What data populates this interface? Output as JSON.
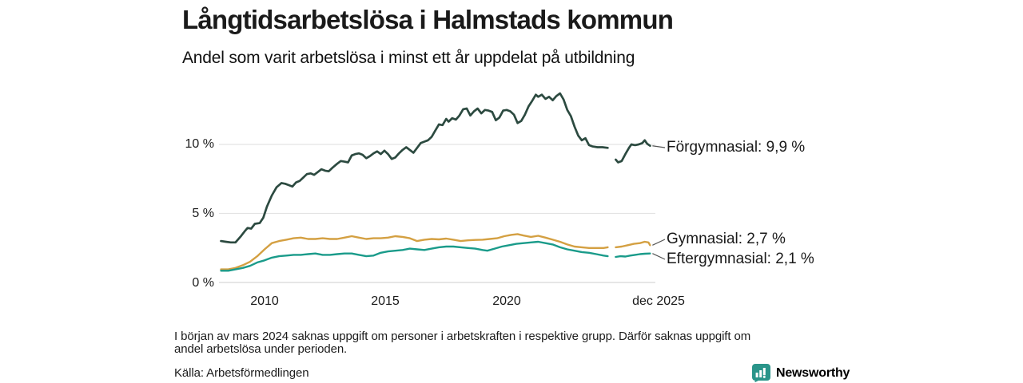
{
  "chart_data": {
    "type": "line",
    "title": "Långtidsarbetslösa i Halmstads kommun",
    "subtitle": "Andel som varit arbetslösa i minst ett år uppdelat på utbildning",
    "unit": "%",
    "grid": true,
    "legend_position": "right-end-of-line",
    "x_axis": {
      "range": [
        2008.2,
        2025.92
      ],
      "ticks": [
        {
          "label": "2010",
          "year": 2010
        },
        {
          "label": "2015",
          "year": 2015
        },
        {
          "label": "2020",
          "year": 2020
        },
        {
          "label": "dec 2025",
          "year": 2025.92
        }
      ]
    },
    "y_axis": {
      "range": [
        0,
        14.5
      ],
      "ticks": [
        {
          "label": "0 %",
          "value": 0
        },
        {
          "label": "5 %",
          "value": 5
        },
        {
          "label": "10 %",
          "value": 10
        }
      ]
    },
    "data_gap": {
      "from": 2024.17,
      "to": 2024.5,
      "period": "mars 2024"
    },
    "series": [
      {
        "name": "Förgymnasial",
        "label": "Förgymnasial: 9,9 %",
        "last_value": "9,9 %",
        "color": "#2c4a40",
        "segments": [
          [
            [
              2008.2,
              3.0
            ],
            [
              2008.4,
              2.95
            ],
            [
              2008.6,
              2.9
            ],
            [
              2008.8,
              2.9
            ],
            [
              2009.0,
              3.3
            ],
            [
              2009.2,
              3.75
            ],
            [
              2009.3,
              3.95
            ],
            [
              2009.45,
              3.9
            ],
            [
              2009.6,
              4.25
            ],
            [
              2009.8,
              4.3
            ],
            [
              2009.95,
              4.7
            ],
            [
              2010.1,
              5.5
            ],
            [
              2010.3,
              6.3
            ],
            [
              2010.5,
              6.9
            ],
            [
              2010.7,
              7.2
            ],
            [
              2010.85,
              7.15
            ],
            [
              2011.0,
              7.05
            ],
            [
              2011.15,
              6.95
            ],
            [
              2011.3,
              7.25
            ],
            [
              2011.45,
              7.35
            ],
            [
              2011.6,
              7.6
            ],
            [
              2011.75,
              7.85
            ],
            [
              2011.9,
              7.9
            ],
            [
              2012.05,
              7.8
            ],
            [
              2012.2,
              8.0
            ],
            [
              2012.35,
              8.2
            ],
            [
              2012.5,
              8.1
            ],
            [
              2012.65,
              8.05
            ],
            [
              2012.8,
              8.3
            ],
            [
              2013.0,
              8.6
            ],
            [
              2013.15,
              8.8
            ],
            [
              2013.3,
              8.75
            ],
            [
              2013.45,
              8.7
            ],
            [
              2013.6,
              9.2
            ],
            [
              2013.75,
              9.3
            ],
            [
              2013.9,
              9.35
            ],
            [
              2014.05,
              9.25
            ],
            [
              2014.2,
              9.0
            ],
            [
              2014.35,
              9.15
            ],
            [
              2014.5,
              9.35
            ],
            [
              2014.65,
              9.5
            ],
            [
              2014.8,
              9.3
            ],
            [
              2014.95,
              9.55
            ],
            [
              2015.1,
              9.3
            ],
            [
              2015.25,
              8.95
            ],
            [
              2015.4,
              9.05
            ],
            [
              2015.55,
              9.35
            ],
            [
              2015.7,
              9.6
            ],
            [
              2015.85,
              9.8
            ],
            [
              2016.0,
              9.6
            ],
            [
              2016.15,
              9.4
            ],
            [
              2016.3,
              9.75
            ],
            [
              2016.45,
              10.1
            ],
            [
              2016.6,
              10.2
            ],
            [
              2016.75,
              10.3
            ],
            [
              2016.9,
              10.55
            ],
            [
              2017.05,
              11.0
            ],
            [
              2017.2,
              11.45
            ],
            [
              2017.35,
              11.4
            ],
            [
              2017.5,
              11.85
            ],
            [
              2017.6,
              11.65
            ],
            [
              2017.75,
              11.9
            ],
            [
              2017.9,
              11.8
            ],
            [
              2018.05,
              12.1
            ],
            [
              2018.2,
              12.55
            ],
            [
              2018.35,
              12.6
            ],
            [
              2018.5,
              12.1
            ],
            [
              2018.65,
              12.4
            ],
            [
              2018.8,
              12.6
            ],
            [
              2018.95,
              12.25
            ],
            [
              2019.1,
              12.5
            ],
            [
              2019.25,
              12.45
            ],
            [
              2019.4,
              12.35
            ],
            [
              2019.55,
              11.75
            ],
            [
              2019.7,
              11.95
            ],
            [
              2019.85,
              12.45
            ],
            [
              2020.0,
              12.5
            ],
            [
              2020.15,
              12.4
            ],
            [
              2020.3,
              12.15
            ],
            [
              2020.45,
              11.55
            ],
            [
              2020.6,
              11.7
            ],
            [
              2020.75,
              12.15
            ],
            [
              2020.9,
              12.75
            ],
            [
              2021.05,
              13.15
            ],
            [
              2021.2,
              13.6
            ],
            [
              2021.3,
              13.45
            ],
            [
              2021.45,
              13.6
            ],
            [
              2021.6,
              13.3
            ],
            [
              2021.75,
              13.45
            ],
            [
              2021.9,
              13.2
            ],
            [
              2022.05,
              13.5
            ],
            [
              2022.2,
              13.7
            ],
            [
              2022.35,
              13.25
            ],
            [
              2022.5,
              12.5
            ],
            [
              2022.65,
              12.05
            ],
            [
              2022.8,
              11.3
            ],
            [
              2022.95,
              10.65
            ],
            [
              2023.1,
              10.3
            ],
            [
              2023.25,
              10.45
            ],
            [
              2023.4,
              9.95
            ],
            [
              2023.55,
              9.85
            ],
            [
              2023.75,
              9.8
            ],
            [
              2023.95,
              9.8
            ],
            [
              2024.17,
              9.75
            ]
          ],
          [
            [
              2024.5,
              8.9
            ],
            [
              2024.6,
              8.7
            ],
            [
              2024.75,
              8.8
            ],
            [
              2024.9,
              9.3
            ],
            [
              2025.05,
              9.75
            ],
            [
              2025.15,
              10.0
            ],
            [
              2025.3,
              9.95
            ],
            [
              2025.45,
              10.0
            ],
            [
              2025.6,
              10.1
            ],
            [
              2025.7,
              10.3
            ],
            [
              2025.8,
              10.05
            ],
            [
              2025.92,
              9.9
            ]
          ]
        ]
      },
      {
        "name": "Gymnasial",
        "label": "Gymnasial: 2,7 %",
        "last_value": "2,7 %",
        "color": "#d4a042",
        "segments": [
          [
            [
              2008.2,
              0.95
            ],
            [
              2008.5,
              0.95
            ],
            [
              2008.8,
              1.05
            ],
            [
              2009.1,
              1.25
            ],
            [
              2009.4,
              1.5
            ],
            [
              2009.7,
              1.9
            ],
            [
              2010.0,
              2.4
            ],
            [
              2010.3,
              2.85
            ],
            [
              2010.6,
              3.0
            ],
            [
              2010.9,
              3.1
            ],
            [
              2011.2,
              3.2
            ],
            [
              2011.5,
              3.25
            ],
            [
              2011.8,
              3.15
            ],
            [
              2012.1,
              3.15
            ],
            [
              2012.4,
              3.2
            ],
            [
              2012.7,
              3.15
            ],
            [
              2013.0,
              3.15
            ],
            [
              2013.3,
              3.25
            ],
            [
              2013.6,
              3.35
            ],
            [
              2013.9,
              3.25
            ],
            [
              2014.2,
              3.15
            ],
            [
              2014.5,
              3.2
            ],
            [
              2014.8,
              3.2
            ],
            [
              2015.1,
              3.25
            ],
            [
              2015.4,
              3.35
            ],
            [
              2015.7,
              3.3
            ],
            [
              2016.0,
              3.2
            ],
            [
              2016.3,
              3.0
            ],
            [
              2016.6,
              3.1
            ],
            [
              2016.9,
              3.15
            ],
            [
              2017.2,
              3.12
            ],
            [
              2017.5,
              3.18
            ],
            [
              2017.8,
              3.1
            ],
            [
              2018.1,
              3.0
            ],
            [
              2018.4,
              3.05
            ],
            [
              2018.7,
              3.08
            ],
            [
              2019.0,
              3.1
            ],
            [
              2019.3,
              3.15
            ],
            [
              2019.6,
              3.2
            ],
            [
              2019.9,
              3.35
            ],
            [
              2020.2,
              3.45
            ],
            [
              2020.45,
              3.5
            ],
            [
              2020.7,
              3.4
            ],
            [
              2021.0,
              3.3
            ],
            [
              2021.3,
              3.38
            ],
            [
              2021.6,
              3.25
            ],
            [
              2021.9,
              3.1
            ],
            [
              2022.2,
              2.95
            ],
            [
              2022.5,
              2.75
            ],
            [
              2022.8,
              2.6
            ],
            [
              2023.1,
              2.55
            ],
            [
              2023.4,
              2.5
            ],
            [
              2023.7,
              2.5
            ],
            [
              2024.0,
              2.5
            ],
            [
              2024.17,
              2.55
            ]
          ],
          [
            [
              2024.5,
              2.55
            ],
            [
              2024.75,
              2.6
            ],
            [
              2025.0,
              2.7
            ],
            [
              2025.25,
              2.8
            ],
            [
              2025.5,
              2.85
            ],
            [
              2025.7,
              2.95
            ],
            [
              2025.85,
              2.9
            ],
            [
              2025.92,
              2.7
            ]
          ]
        ]
      },
      {
        "name": "Eftergymnasial",
        "label": "Eftergymnasial: 2,1 %",
        "last_value": "2,1 %",
        "color": "#1a9b8a",
        "segments": [
          [
            [
              2008.2,
              0.85
            ],
            [
              2008.5,
              0.85
            ],
            [
              2008.8,
              0.95
            ],
            [
              2009.1,
              1.05
            ],
            [
              2009.4,
              1.2
            ],
            [
              2009.7,
              1.45
            ],
            [
              2010.0,
              1.6
            ],
            [
              2010.3,
              1.8
            ],
            [
              2010.6,
              1.9
            ],
            [
              2010.9,
              1.95
            ],
            [
              2011.2,
              2.0
            ],
            [
              2011.5,
              2.0
            ],
            [
              2011.8,
              2.05
            ],
            [
              2012.1,
              2.1
            ],
            [
              2012.4,
              2.0
            ],
            [
              2012.7,
              2.0
            ],
            [
              2013.0,
              2.05
            ],
            [
              2013.3,
              2.1
            ],
            [
              2013.6,
              2.1
            ],
            [
              2013.9,
              2.0
            ],
            [
              2014.2,
              1.9
            ],
            [
              2014.5,
              1.95
            ],
            [
              2014.8,
              2.15
            ],
            [
              2015.1,
              2.25
            ],
            [
              2015.4,
              2.3
            ],
            [
              2015.7,
              2.35
            ],
            [
              2016.0,
              2.45
            ],
            [
              2016.3,
              2.4
            ],
            [
              2016.6,
              2.35
            ],
            [
              2016.9,
              2.45
            ],
            [
              2017.2,
              2.55
            ],
            [
              2017.5,
              2.6
            ],
            [
              2017.8,
              2.6
            ],
            [
              2018.1,
              2.55
            ],
            [
              2018.4,
              2.5
            ],
            [
              2018.7,
              2.45
            ],
            [
              2019.0,
              2.35
            ],
            [
              2019.2,
              2.3
            ],
            [
              2019.5,
              2.45
            ],
            [
              2019.8,
              2.6
            ],
            [
              2020.1,
              2.7
            ],
            [
              2020.4,
              2.8
            ],
            [
              2020.7,
              2.85
            ],
            [
              2021.0,
              2.9
            ],
            [
              2021.3,
              2.95
            ],
            [
              2021.6,
              2.85
            ],
            [
              2021.9,
              2.75
            ],
            [
              2022.2,
              2.55
            ],
            [
              2022.5,
              2.4
            ],
            [
              2022.8,
              2.3
            ],
            [
              2023.1,
              2.2
            ],
            [
              2023.4,
              2.15
            ],
            [
              2023.7,
              2.05
            ],
            [
              2024.0,
              1.95
            ],
            [
              2024.17,
              1.9
            ]
          ],
          [
            [
              2024.5,
              1.85
            ],
            [
              2024.7,
              1.9
            ],
            [
              2024.9,
              1.88
            ],
            [
              2025.1,
              1.95
            ],
            [
              2025.3,
              2.0
            ],
            [
              2025.5,
              2.05
            ],
            [
              2025.7,
              2.08
            ],
            [
              2025.92,
              2.1
            ]
          ]
        ]
      }
    ]
  },
  "footnote": {
    "lines": [
      "I början av mars 2024 saknas uppgift om personer i arbetskraften i respektive grupp. Därför saknas uppgift om",
      "andel arbetslösa under perioden."
    ]
  },
  "source": "Källa: Arbetsförmedlingen",
  "branding": {
    "name": "Newsworthy",
    "icon": "newsworthy-barchart-bubble-icon",
    "icon_color": "#2a958a",
    "text_color": "#1b7166"
  },
  "colors": {
    "gridline": "#e4e4e4",
    "baseline": "#d6d6d6",
    "text": "#1a1a1a"
  }
}
